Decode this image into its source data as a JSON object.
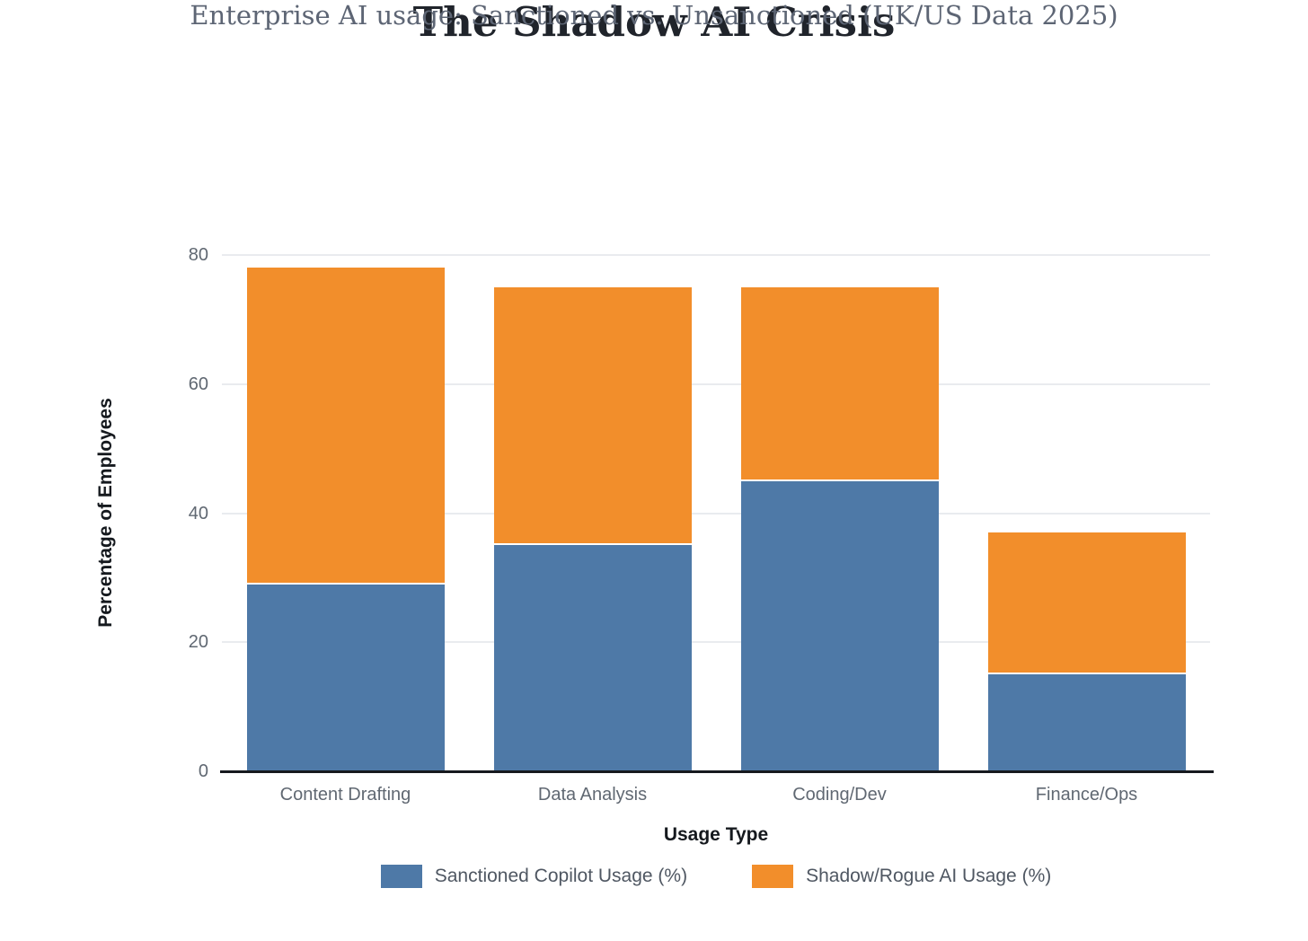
{
  "header": {
    "title": "The Shadow AI Crisis",
    "subtitle": "Enterprise AI usage: Sanctioned vs. Unsanctioned (UK/US Data 2025)"
  },
  "chart_data": {
    "type": "bar",
    "stacked": true,
    "title": "The Shadow AI Crisis",
    "subtitle": "Enterprise AI usage: Sanctioned vs. Unsanctioned (UK/US Data 2025)",
    "xlabel": "Usage Type",
    "ylabel": "Percentage of Employees",
    "categories": [
      "Content Drafting",
      "Data Analysis",
      "Coding/Dev",
      "Finance/Ops"
    ],
    "series": [
      {
        "name": "Sanctioned Copilot Usage (%)",
        "color": "#4e79a7",
        "values": [
          29,
          35,
          45,
          15
        ]
      },
      {
        "name": "Shadow/Rogue AI Usage (%)",
        "color": "#f28e2b",
        "values": [
          49,
          40,
          30,
          22
        ]
      }
    ],
    "stack_totals": [
      78,
      75,
      75,
      37
    ],
    "ylim": [
      0,
      80
    ],
    "yticks": [
      0,
      20,
      40,
      60,
      80
    ],
    "grid": true,
    "legend_position": "bottom"
  },
  "colors": {
    "background": "#ffffff",
    "grid_line": "#e9ebef",
    "axis_line": "#16191e",
    "tick_label": "#606872",
    "axis_title": "#15191e",
    "title": "#20242b",
    "subtitle": "#5d6574",
    "legend_text": "#4f5762",
    "segment_divider": "#ffffff"
  }
}
